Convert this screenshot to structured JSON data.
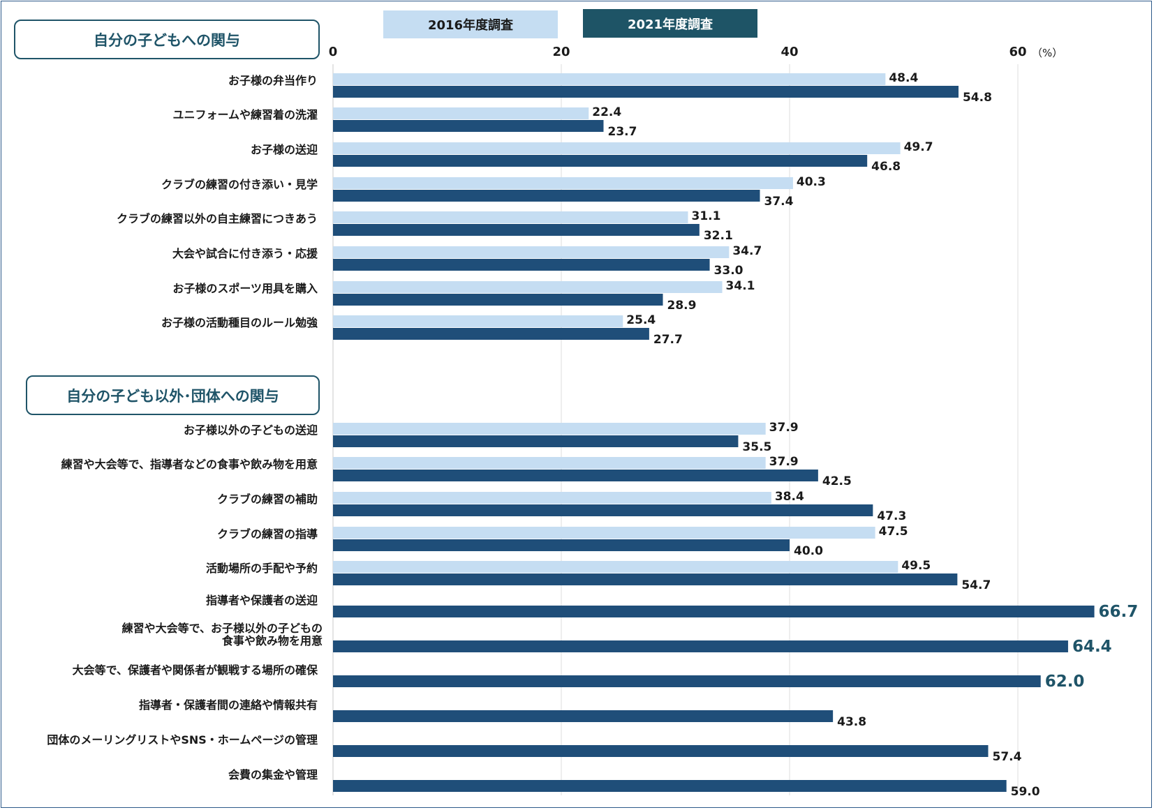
{
  "legend": {
    "s2016": {
      "label": "2016年度調査",
      "color": "#c5ddf2"
    },
    "s2021": {
      "label": "2021年度調査",
      "color": "#1f4e79"
    }
  },
  "sections": [
    {
      "title": "自分の子どもへの関与"
    },
    {
      "title": "自分の子ども以外･団体への関与"
    }
  ],
  "chart_data": {
    "type": "bar",
    "orientation": "horizontal",
    "xlim": [
      0,
      70
    ],
    "ticks": [
      {
        "value": 0,
        "label": "0"
      },
      {
        "value": 20,
        "label": "20"
      },
      {
        "value": 40,
        "label": "40"
      },
      {
        "value": 60,
        "label": "60"
      }
    ],
    "unit": "（%）",
    "grid": true,
    "series": [
      {
        "name": "2016年度調査",
        "color": "#c5ddf2"
      },
      {
        "name": "2021年度調査",
        "color": "#1f4e79"
      }
    ],
    "highlight_color": "#1f5468",
    "categories": [
      {
        "label": [
          "お子様の弁当作り"
        ],
        "v2016": 48.4,
        "v2021": 54.8
      },
      {
        "label": [
          "ユニフォームや練習着の洗濯"
        ],
        "v2016": 22.4,
        "v2021": 23.7
      },
      {
        "label": [
          "お子様の送迎"
        ],
        "v2016": 49.7,
        "v2021": 46.8
      },
      {
        "label": [
          "クラブの練習の付き添い・見学"
        ],
        "v2016": 40.3,
        "v2021": 37.4
      },
      {
        "label": [
          "クラブの練習以外の自主練習につきあう"
        ],
        "v2016": 31.1,
        "v2021": 32.1
      },
      {
        "label": [
          "大会や試合に付き添う・応援"
        ],
        "v2016": 34.7,
        "v2021": 33.0
      },
      {
        "label": [
          "お子様のスポーツ用具を購入"
        ],
        "v2016": 34.1,
        "v2021": 28.9
      },
      {
        "label": [
          "お子様の活動種目のルール勉強"
        ],
        "v2016": 25.4,
        "v2021": 27.7
      },
      {
        "label": [
          "お子様以外の子どもの送迎"
        ],
        "v2016": 37.9,
        "v2021": 35.5
      },
      {
        "label": [
          "練習や大会等で、指導者などの食事や飲み物を用意"
        ],
        "v2016": 37.9,
        "v2021": 42.5
      },
      {
        "label": [
          "クラブの練習の補助"
        ],
        "v2016": 38.4,
        "v2021": 47.3
      },
      {
        "label": [
          "クラブの練習の指導"
        ],
        "v2016": 47.5,
        "v2021": 40.0
      },
      {
        "label": [
          "活動場所の手配や予約"
        ],
        "v2016": 49.5,
        "v2021": 54.7
      },
      {
        "label": [
          "指導者や保護者の送迎"
        ],
        "v2016": null,
        "v2021": 66.7,
        "highlight": true
      },
      {
        "label": [
          "練習や大会等で、お子様以外の子どもの",
          "食事や飲み物を用意"
        ],
        "v2016": null,
        "v2021": 64.4,
        "highlight": true
      },
      {
        "label": [
          "大会等で、保護者や関係者が観戦する場所の確保"
        ],
        "v2016": null,
        "v2021": 62.0,
        "highlight": true
      },
      {
        "label": [
          "指導者・保護者間の連絡や情報共有"
        ],
        "v2016": null,
        "v2021": 43.8
      },
      {
        "label": [
          "団体のメーリングリストやSNS・ホームページの管理"
        ],
        "v2016": null,
        "v2021": 57.4
      },
      {
        "label": [
          "会費の集金や管理"
        ],
        "v2016": null,
        "v2021": 59.0
      }
    ]
  }
}
